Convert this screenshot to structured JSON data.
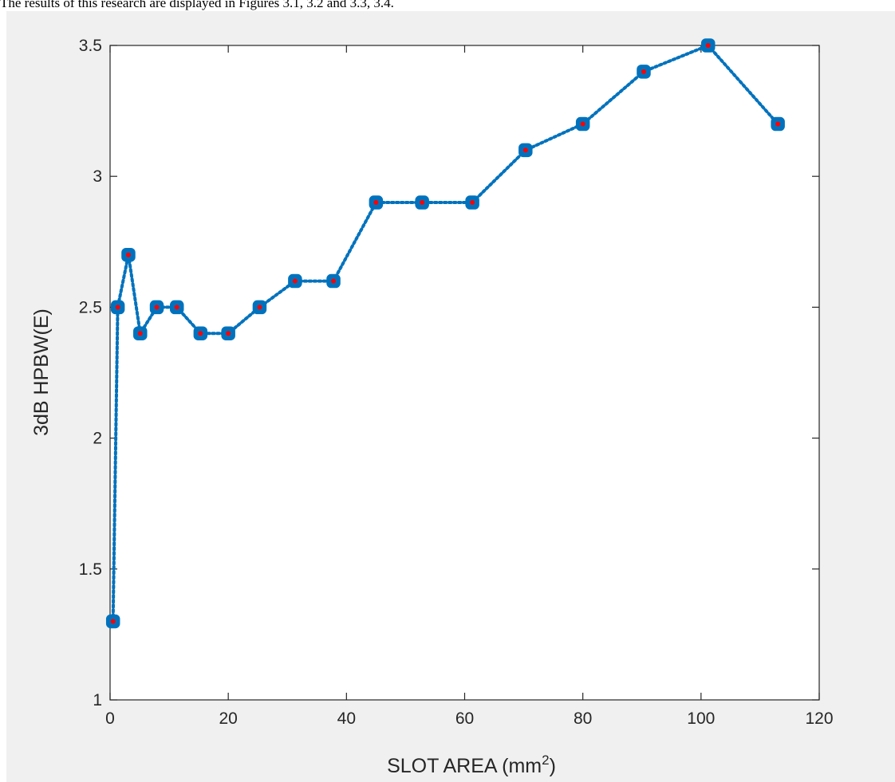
{
  "page": {
    "caption_text": "The results of this research are displayed in Figures 3.1, 3.2 and 3.3, 3.4."
  },
  "colors": {
    "figure_background": "#f0f0f0",
    "plot_background": "#ffffff",
    "axis": "#262626",
    "line": "#0072bd",
    "marker_edge": "#0072bd",
    "marker_center": "#ff0000"
  },
  "chart_data": {
    "type": "line",
    "title": "",
    "xlabel": "SLOT AREA (mm",
    "xlabel_superscript": "2",
    "xlabel_suffix": ")",
    "ylabel": "3dB HPBW(E)",
    "xlim": [
      0,
      120
    ],
    "ylim": [
      1,
      3.5
    ],
    "xticks": [
      0,
      20,
      40,
      60,
      80,
      100,
      120
    ],
    "yticks": [
      1,
      1.5,
      2,
      2.5,
      3,
      3.5
    ],
    "xtick_labels": [
      "0",
      "20",
      "40",
      "60",
      "80",
      "100",
      "120"
    ],
    "ytick_labels": [
      "1",
      "1.5",
      "2",
      "2.5",
      "3",
      "3.5"
    ],
    "grid": false,
    "line_style": "dotted",
    "marker": "square-with-red-dot",
    "series": [
      {
        "x": [
          0.5,
          1.3,
          3.1,
          5.1,
          7.9,
          11.3,
          15.3,
          20,
          25.3,
          31.3,
          37.8,
          45,
          52.8,
          61.3,
          70.3,
          80,
          90.3,
          101.2,
          113
        ],
        "y": [
          1.3,
          2.5,
          2.7,
          2.4,
          2.5,
          2.5,
          2.4,
          2.4,
          2.5,
          2.6,
          2.6,
          2.9,
          2.9,
          2.9,
          3.1,
          3.2,
          3.4,
          3.5,
          3.2
        ]
      }
    ]
  }
}
